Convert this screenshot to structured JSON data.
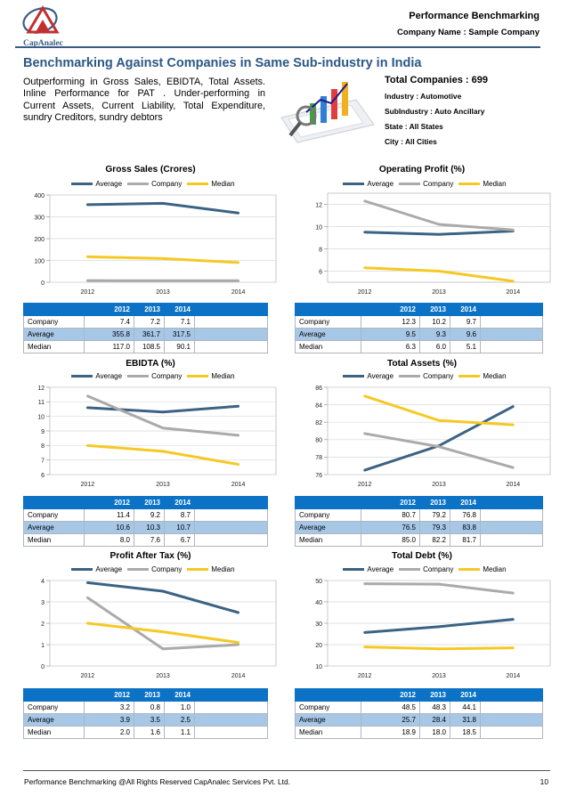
{
  "header": {
    "logo_text": "CapAnalec",
    "title": "Performance Benchmarking",
    "company_line": "Company Name : Sample Company"
  },
  "main_title": "Benchmarking Against Companies in Same Sub-industry in India",
  "summary": "Outperforming in Gross Sales, EBIDTA, Total Assets. Inline Performance for PAT . Under-performing in Current Assets, Current Liability, Total Expenditure, sundry Creditors, sundry debtors",
  "stats": {
    "total_companies": "Total Companies : 699",
    "industry": "Industry : Automotive",
    "subindustry": "SubIndustry : Auto Ancillary",
    "state": "State : All States",
    "city": "City : All Cities"
  },
  "legend": [
    "Average",
    "Company",
    "Median"
  ],
  "colors": {
    "average": "#3b6384",
    "company": "#aaaaaa",
    "median": "#f5c924",
    "header": "#0b72c5",
    "alt_row": "#a7c7e7",
    "title": "#2b5885"
  },
  "table_header": [
    "2012",
    "2013",
    "2014"
  ],
  "row_labels": [
    "Company",
    "Average",
    "Median"
  ],
  "chart_data": [
    {
      "type": "line",
      "title": "Gross Sales (Crores)",
      "categories": [
        "2012",
        "2013",
        "2014"
      ],
      "ylim": [
        0,
        400
      ],
      "yticks": [
        "0",
        "100",
        "200",
        "300",
        "400"
      ],
      "series": [
        {
          "name": "Average",
          "values": [
            355.8,
            361.7,
            317.5
          ],
          "labels": [
            "355.8",
            "361.7",
            "317.5"
          ]
        },
        {
          "name": "Company",
          "values": [
            7.4,
            7.2,
            7.1
          ],
          "labels": [
            "7.4",
            "7.2",
            "7.1"
          ]
        },
        {
          "name": "Median",
          "values": [
            117.0,
            108.5,
            90.1
          ],
          "labels": [
            "117.0",
            "108.5",
            "90.1"
          ]
        }
      ]
    },
    {
      "type": "line",
      "title": "Operating Profit (%)",
      "categories": [
        "2012",
        "2013",
        "2014"
      ],
      "ylim": [
        5,
        13
      ],
      "yticks": [
        "6",
        "8",
        "10",
        "12"
      ],
      "series": [
        {
          "name": "Average",
          "values": [
            9.5,
            9.3,
            9.6
          ],
          "labels": [
            "9.5",
            "9.3",
            "9.6"
          ]
        },
        {
          "name": "Company",
          "values": [
            12.3,
            10.2,
            9.7
          ],
          "labels": [
            "12.3",
            "10.2",
            "9.7"
          ]
        },
        {
          "name": "Median",
          "values": [
            6.3,
            6.0,
            5.1
          ],
          "labels": [
            "6.3",
            "6.0",
            "5.1"
          ]
        }
      ]
    },
    {
      "type": "line",
      "title": "EBIDTA (%)",
      "categories": [
        "2012",
        "2013",
        "2014"
      ],
      "ylim": [
        6,
        12
      ],
      "yticks": [
        "6",
        "7",
        "8",
        "9",
        "10",
        "11",
        "12"
      ],
      "series": [
        {
          "name": "Average",
          "values": [
            10.6,
            10.3,
            10.7
          ],
          "labels": [
            "10.6",
            "10.3",
            "10.7"
          ]
        },
        {
          "name": "Company",
          "values": [
            11.4,
            9.2,
            8.7
          ],
          "labels": [
            "11.4",
            "9.2",
            "8.7"
          ]
        },
        {
          "name": "Median",
          "values": [
            8.0,
            7.6,
            6.7
          ],
          "labels": [
            "8.0",
            "7.6",
            "6.7"
          ]
        }
      ]
    },
    {
      "type": "line",
      "title": "Total Assets (%)",
      "categories": [
        "2012",
        "2013",
        "2014"
      ],
      "ylim": [
        76,
        86
      ],
      "yticks": [
        "76",
        "78",
        "80",
        "82",
        "84",
        "86"
      ],
      "series": [
        {
          "name": "Average",
          "values": [
            76.5,
            79.3,
            83.8
          ],
          "labels": [
            "76.5",
            "79.3",
            "83.8"
          ]
        },
        {
          "name": "Company",
          "values": [
            80.7,
            79.2,
            76.8
          ],
          "labels": [
            "80.7",
            "79.2",
            "76.8"
          ]
        },
        {
          "name": "Median",
          "values": [
            85.0,
            82.2,
            81.7
          ],
          "labels": [
            "85.0",
            "82.2",
            "81.7"
          ]
        }
      ]
    },
    {
      "type": "line",
      "title": "Profit After Tax (%)",
      "categories": [
        "2012",
        "2013",
        "2014"
      ],
      "ylim": [
        0,
        4
      ],
      "yticks": [
        "0",
        "1",
        "2",
        "3",
        "4"
      ],
      "series": [
        {
          "name": "Average",
          "values": [
            3.9,
            3.5,
            2.5
          ],
          "labels": [
            "3.9",
            "3.5",
            "2.5"
          ]
        },
        {
          "name": "Company",
          "values": [
            3.2,
            0.8,
            1.0
          ],
          "labels": [
            "3.2",
            "0.8",
            "1.0"
          ]
        },
        {
          "name": "Median",
          "values": [
            2.0,
            1.6,
            1.1
          ],
          "labels": [
            "2.0",
            "1.6",
            "1.1"
          ]
        }
      ]
    },
    {
      "type": "line",
      "title": "Total Debt (%)",
      "categories": [
        "2012",
        "2013",
        "2014"
      ],
      "ylim": [
        10,
        50
      ],
      "yticks": [
        "10",
        "20",
        "30",
        "40",
        "50"
      ],
      "series": [
        {
          "name": "Average",
          "values": [
            25.7,
            28.4,
            31.8
          ],
          "labels": [
            "25.7",
            "28.4",
            "31.8"
          ]
        },
        {
          "name": "Company",
          "values": [
            48.5,
            48.3,
            44.1
          ],
          "labels": [
            "48.5",
            "48.3",
            "44.1"
          ]
        },
        {
          "name": "Median",
          "values": [
            18.9,
            18.0,
            18.5
          ],
          "labels": [
            "18.9",
            "18.0",
            "18.5"
          ]
        }
      ]
    }
  ],
  "footer": {
    "left": "Performance Benchmarking @All Rights Reserved CapAnalec Services Pvt. Ltd.",
    "page": "10"
  }
}
